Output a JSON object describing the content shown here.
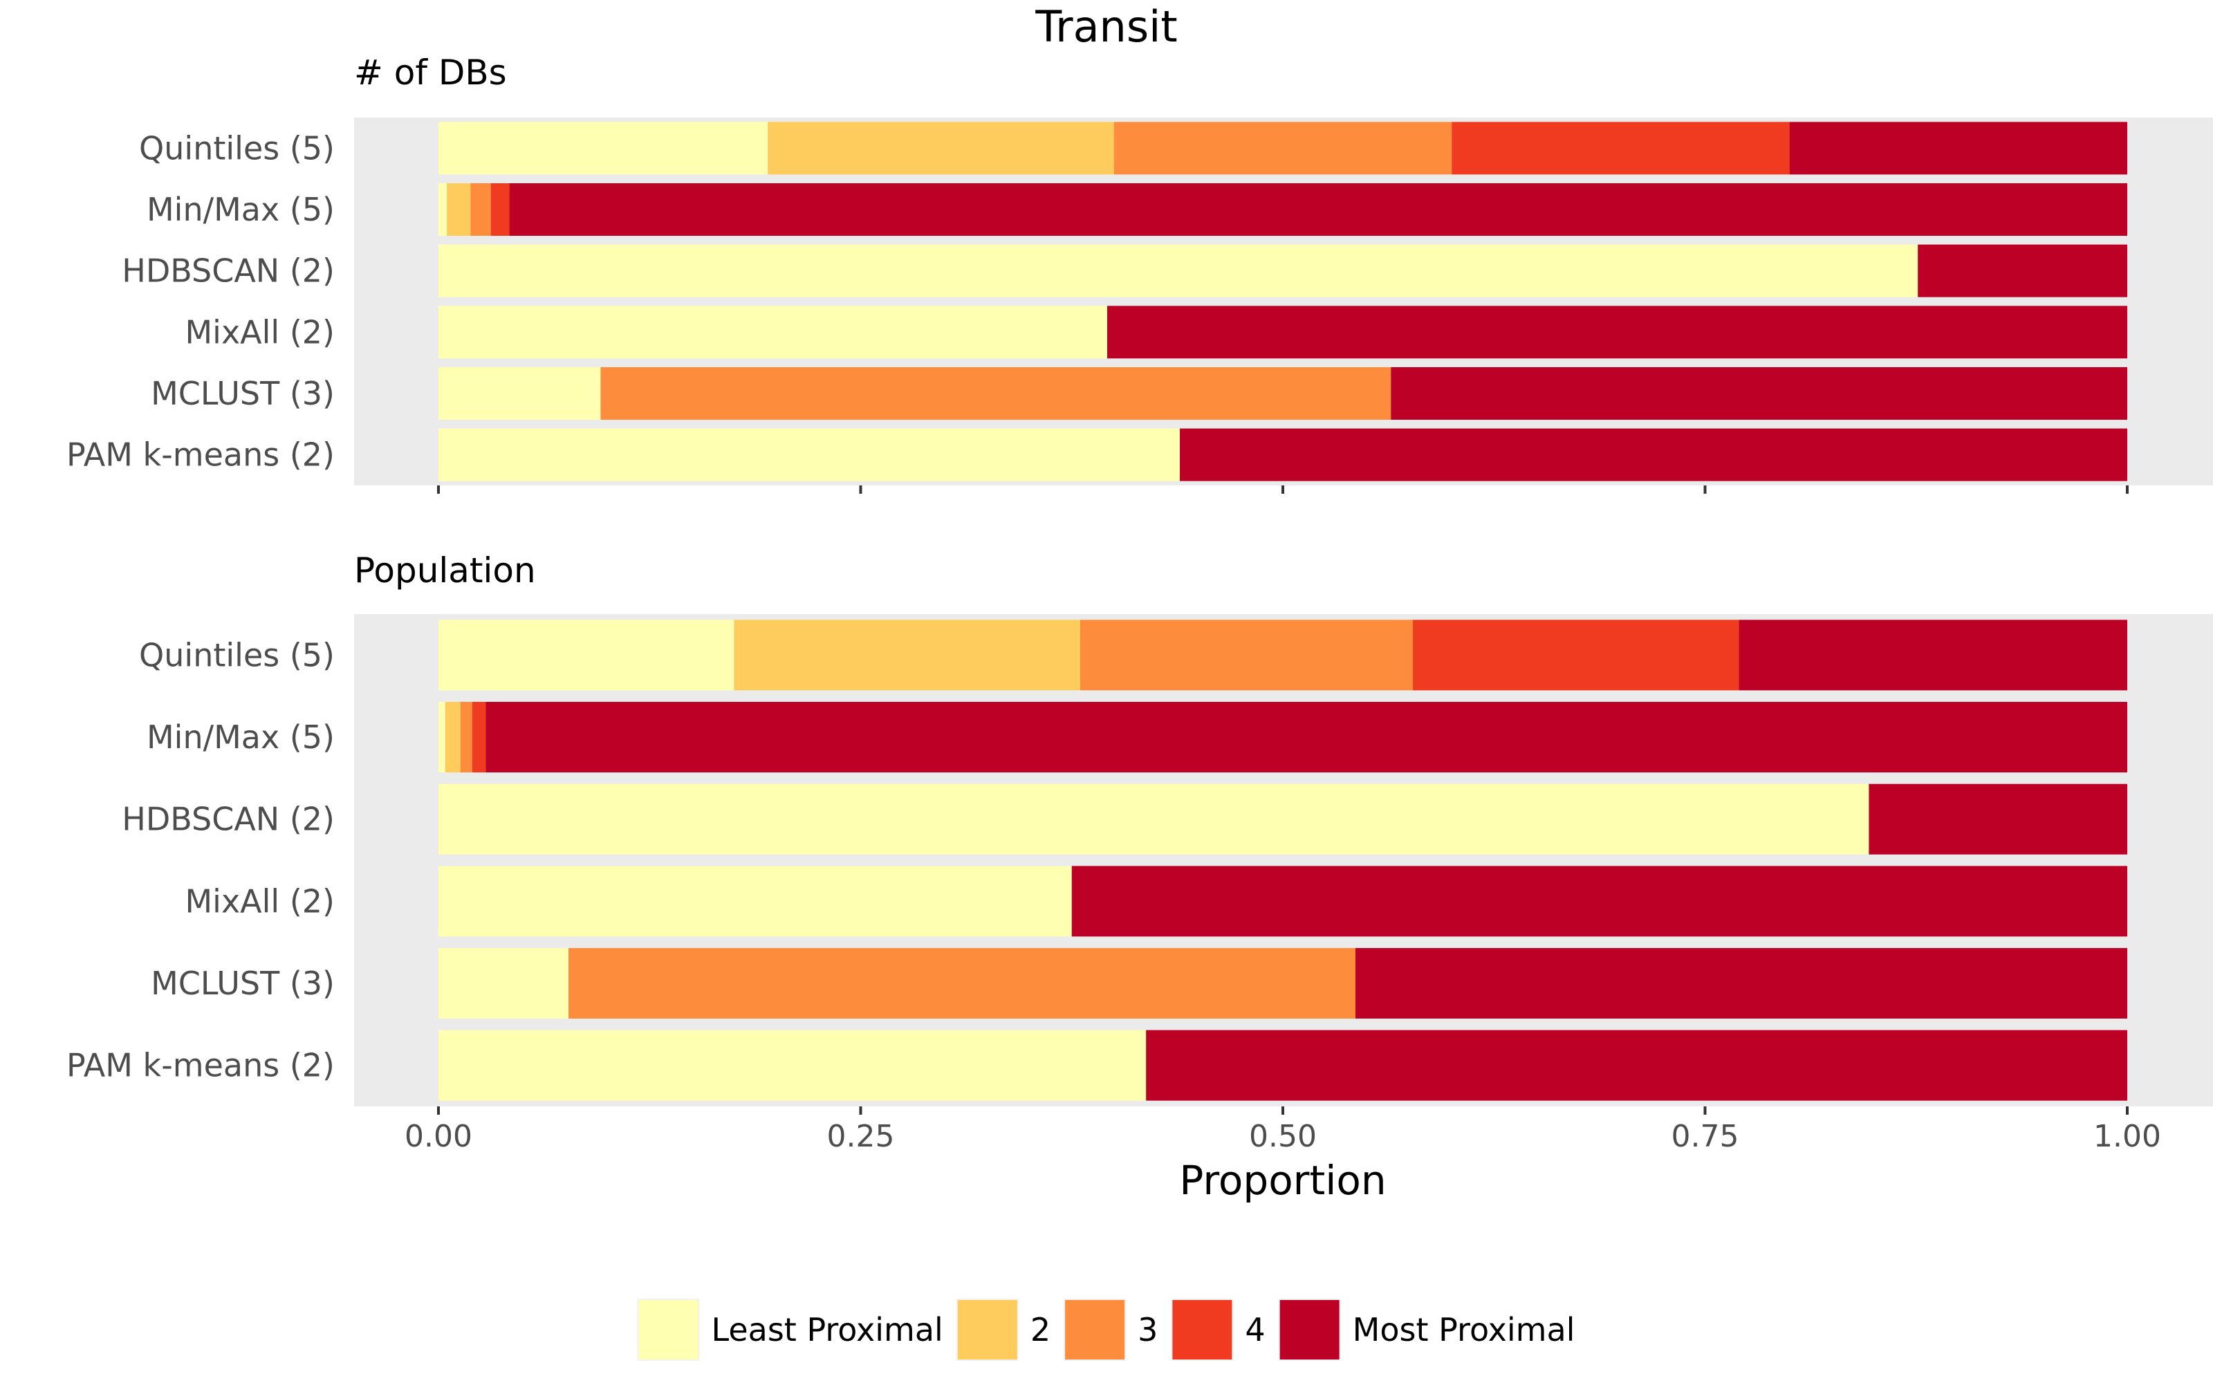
{
  "chart_data": {
    "type": "bar",
    "orientation": "horizontal",
    "stacked": true,
    "title": "Transit",
    "xlabel": "Proportion",
    "xlim": [
      0,
      1
    ],
    "x_ticks": [
      "0.00",
      "0.25",
      "0.50",
      "0.75",
      "1.00"
    ],
    "categories": [
      "Quintiles (5)",
      "Min/Max (5)",
      "HDBSCAN (2)",
      "MixAll (2)",
      "MCLUST (3)",
      "PAM k-means (2)"
    ],
    "legend": {
      "position": "bottom",
      "entries": [
        {
          "label": "Least Proximal",
          "color": "#FFFFB2"
        },
        {
          "label": "2",
          "color": "#FECC5C"
        },
        {
          "label": "3",
          "color": "#FD8D3C"
        },
        {
          "label": "4",
          "color": "#F03B20"
        },
        {
          "label": "Most Proximal",
          "color": "#BD0026"
        }
      ]
    },
    "panels": [
      {
        "title": "# of DBs",
        "show_tick_labels": false,
        "series": [
          {
            "name": "Least Proximal",
            "values": [
              0.195,
              0.005,
              0.876,
              0.396,
              0.096,
              0.439
            ]
          },
          {
            "name": "2",
            "values": [
              0.205,
              0.014,
              0,
              0,
              0,
              0
            ]
          },
          {
            "name": "3",
            "values": [
              0.2,
              0.012,
              0,
              0,
              0.468,
              0
            ]
          },
          {
            "name": "4",
            "values": [
              0.2,
              0.011,
              0,
              0,
              0,
              0
            ]
          },
          {
            "name": "Most Proximal",
            "values": [
              0.2,
              0.958,
              0.124,
              0.604,
              0.436,
              0.561
            ]
          }
        ]
      },
      {
        "title": "Population",
        "show_tick_labels": true,
        "series": [
          {
            "name": "Least Proximal",
            "values": [
              0.175,
              0.004,
              0.847,
              0.375,
              0.077,
              0.419
            ]
          },
          {
            "name": "2",
            "values": [
              0.205,
              0.009,
              0,
              0,
              0,
              0
            ]
          },
          {
            "name": "3",
            "values": [
              0.197,
              0.007,
              0,
              0,
              0.466,
              0
            ]
          },
          {
            "name": "4",
            "values": [
              0.193,
              0.008,
              0,
              0,
              0,
              0
            ]
          },
          {
            "name": "Most Proximal",
            "values": [
              0.23,
              0.972,
              0.153,
              0.625,
              0.457,
              0.581
            ]
          }
        ]
      }
    ]
  }
}
